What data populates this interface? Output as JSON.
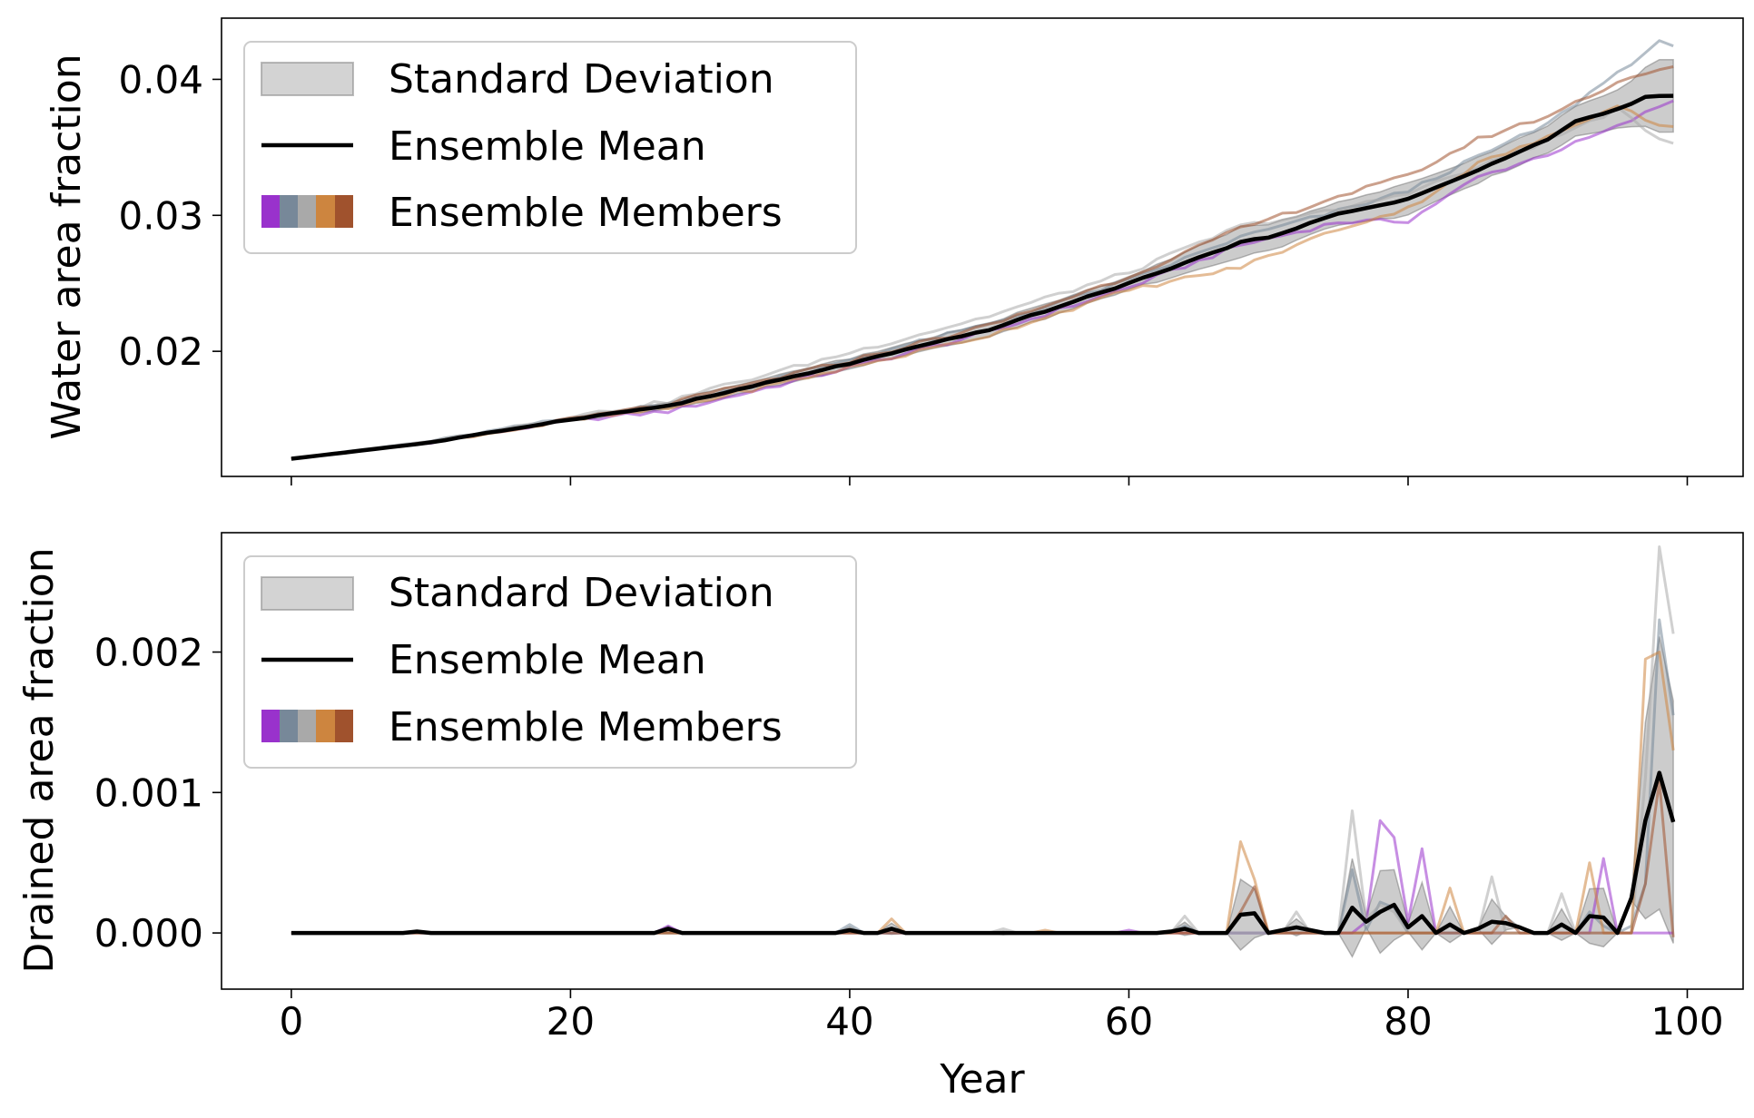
{
  "chart_data": [
    {
      "type": "line",
      "panel": "top",
      "ylabel": "Water area fraction",
      "xlabel": "",
      "xlim": [
        -5,
        104
      ],
      "ylim": [
        0.0108,
        0.0445
      ],
      "xticks": [
        0,
        20,
        40,
        60,
        80,
        100
      ],
      "yticks": [
        0.02,
        0.03,
        0.04
      ],
      "ytick_labels": [
        "0.02",
        "0.03",
        "0.04"
      ],
      "show_xtick_labels": false,
      "grid": false,
      "legend_position": "top-left",
      "legend": {
        "std_label": "Standard Deviation",
        "mean_label": "Ensemble Mean",
        "members_label": "Ensemble Members"
      },
      "mean_keypoints": [
        [
          0,
          0.0121
        ],
        [
          10,
          0.0133
        ],
        [
          20,
          0.015
        ],
        [
          27,
          0.016
        ],
        [
          30,
          0.0167
        ],
        [
          40,
          0.0191
        ],
        [
          50,
          0.0216
        ],
        [
          60,
          0.025
        ],
        [
          68,
          0.028
        ],
        [
          70,
          0.0284
        ],
        [
          75,
          0.0301
        ],
        [
          80,
          0.0312
        ],
        [
          85,
          0.0333
        ],
        [
          90,
          0.0356
        ],
        [
          92,
          0.0369
        ],
        [
          95,
          0.0378
        ],
        [
          97,
          0.0387
        ],
        [
          99,
          0.0388
        ]
      ],
      "members": [
        {
          "color": "#9932CC",
          "keypoints": [
            [
              0,
              0.0121
            ],
            [
              10,
              0.0133
            ],
            [
              20,
              0.0149
            ],
            [
              27,
              0.0156
            ],
            [
              30,
              0.0163
            ],
            [
              40,
              0.0188
            ],
            [
              50,
              0.0214
            ],
            [
              60,
              0.0247
            ],
            [
              68,
              0.0278
            ],
            [
              75,
              0.0295
            ],
            [
              80,
              0.0296
            ],
            [
              85,
              0.0328
            ],
            [
              90,
              0.0345
            ],
            [
              95,
              0.0365
            ],
            [
              99,
              0.0385
            ]
          ]
        },
        {
          "color": "#778899",
          "keypoints": [
            [
              0,
              0.0121
            ],
            [
              10,
              0.0134
            ],
            [
              20,
              0.0151
            ],
            [
              27,
              0.0161
            ],
            [
              30,
              0.0168
            ],
            [
              40,
              0.0194
            ],
            [
              50,
              0.022
            ],
            [
              60,
              0.0252
            ],
            [
              68,
              0.0284
            ],
            [
              75,
              0.0303
            ],
            [
              80,
              0.0318
            ],
            [
              85,
              0.0343
            ],
            [
              90,
              0.0367
            ],
            [
              95,
              0.0405
            ],
            [
              98,
              0.0427
            ],
            [
              99,
              0.0423
            ]
          ]
        },
        {
          "color": "#A9A9A9",
          "keypoints": [
            [
              0,
              0.0121
            ],
            [
              10,
              0.0134
            ],
            [
              20,
              0.0152
            ],
            [
              27,
              0.0163
            ],
            [
              30,
              0.0172
            ],
            [
              40,
              0.0199
            ],
            [
              50,
              0.0226
            ],
            [
              60,
              0.0258
            ],
            [
              68,
              0.0292
            ],
            [
              75,
              0.0304
            ],
            [
              80,
              0.0317
            ],
            [
              85,
              0.0335
            ],
            [
              90,
              0.0355
            ],
            [
              95,
              0.0378
            ],
            [
              97,
              0.0362
            ],
            [
              99,
              0.0353
            ]
          ]
        },
        {
          "color": "#CD853F",
          "keypoints": [
            [
              0,
              0.0121
            ],
            [
              10,
              0.0133
            ],
            [
              20,
              0.0149
            ],
            [
              27,
              0.0158
            ],
            [
              30,
              0.0165
            ],
            [
              40,
              0.0188
            ],
            [
              50,
              0.0212
            ],
            [
              60,
              0.0245
            ],
            [
              68,
              0.0262
            ],
            [
              75,
              0.029
            ],
            [
              80,
              0.0305
            ],
            [
              85,
              0.0338
            ],
            [
              90,
              0.0357
            ],
            [
              95,
              0.0382
            ],
            [
              97,
              0.037
            ],
            [
              99,
              0.0365
            ]
          ]
        },
        {
          "color": "#A0522D",
          "keypoints": [
            [
              0,
              0.0121
            ],
            [
              10,
              0.0133
            ],
            [
              20,
              0.015
            ],
            [
              27,
              0.0161
            ],
            [
              30,
              0.0169
            ],
            [
              40,
              0.0193
            ],
            [
              50,
              0.0219
            ],
            [
              60,
              0.0255
            ],
            [
              68,
              0.029
            ],
            [
              75,
              0.0314
            ],
            [
              80,
              0.0329
            ],
            [
              85,
              0.0356
            ],
            [
              90,
              0.0373
            ],
            [
              95,
              0.0398
            ],
            [
              97,
              0.0405
            ],
            [
              99,
              0.0408
            ]
          ]
        }
      ]
    },
    {
      "type": "line",
      "panel": "bottom",
      "ylabel": "Drained area fraction",
      "xlabel": "Year",
      "xlim": [
        -5,
        104
      ],
      "ylim": [
        -0.0004,
        0.00285
      ],
      "xticks": [
        0,
        20,
        40,
        60,
        80,
        100
      ],
      "xtick_labels": [
        "0",
        "20",
        "40",
        "60",
        "80",
        "100"
      ],
      "yticks": [
        0.0,
        0.001,
        0.002
      ],
      "ytick_labels": [
        "0.000",
        "0.001",
        "0.002"
      ],
      "show_xtick_labels": true,
      "grid": false,
      "legend_position": "top-left",
      "legend": {
        "std_label": "Standard Deviation",
        "mean_label": "Ensemble Mean",
        "members_label": "Ensemble Members"
      },
      "mean_points": [
        [
          0,
          0
        ],
        [
          8,
          0
        ],
        [
          9,
          1e-05
        ],
        [
          10,
          0
        ],
        [
          26,
          0
        ],
        [
          27,
          3e-05
        ],
        [
          28,
          0
        ],
        [
          39,
          0
        ],
        [
          40,
          2e-05
        ],
        [
          41,
          0
        ],
        [
          42,
          0
        ],
        [
          43,
          3e-05
        ],
        [
          44,
          0
        ],
        [
          62,
          0
        ],
        [
          63,
          1e-05
        ],
        [
          64,
          3e-05
        ],
        [
          65,
          0
        ],
        [
          67,
          0
        ],
        [
          68,
          0.00013
        ],
        [
          69,
          0.00014
        ],
        [
          70,
          0
        ],
        [
          71,
          2e-05
        ],
        [
          72,
          4e-05
        ],
        [
          73,
          2e-05
        ],
        [
          74,
          0
        ],
        [
          75,
          0
        ],
        [
          76,
          0.00018
        ],
        [
          77,
          8e-05
        ],
        [
          78,
          0.00015
        ],
        [
          79,
          0.0002
        ],
        [
          80,
          4e-05
        ],
        [
          81,
          0.00012
        ],
        [
          82,
          0
        ],
        [
          83,
          6e-05
        ],
        [
          84,
          0
        ],
        [
          85,
          3e-05
        ],
        [
          86,
          8e-05
        ],
        [
          87,
          7e-05
        ],
        [
          88,
          4e-05
        ],
        [
          89,
          0
        ],
        [
          90,
          0
        ],
        [
          91,
          6e-05
        ],
        [
          92,
          0
        ],
        [
          93,
          0.00012
        ],
        [
          94,
          0.00011
        ],
        [
          95,
          0
        ],
        [
          96,
          0.00025
        ],
        [
          97,
          0.0008
        ],
        [
          98,
          0.00114
        ],
        [
          99,
          0.00079
        ]
      ],
      "members": [
        {
          "color": "#9932CC",
          "points": [
            [
              0,
              0
            ],
            [
              26,
              0
            ],
            [
              27,
              5e-05
            ],
            [
              28,
              0
            ],
            [
              59,
              0
            ],
            [
              60,
              2e-05
            ],
            [
              61,
              0
            ],
            [
              76,
              0
            ],
            [
              77,
              8e-05
            ],
            [
              78,
              0.0008
            ],
            [
              79,
              0.00068
            ],
            [
              80,
              8e-05
            ],
            [
              81,
              0.0006
            ],
            [
              82,
              0
            ],
            [
              93,
              0
            ],
            [
              94,
              0.00053
            ],
            [
              95,
              0
            ],
            [
              99,
              0
            ]
          ]
        },
        {
          "color": "#778899",
          "points": [
            [
              0,
              0
            ],
            [
              39,
              0
            ],
            [
              40,
              6e-05
            ],
            [
              41,
              0
            ],
            [
              63,
              0
            ],
            [
              64,
              5e-05
            ],
            [
              65,
              0
            ],
            [
              75,
              0
            ],
            [
              76,
              0.00045
            ],
            [
              77,
              2e-05
            ],
            [
              78,
              0.00022
            ],
            [
              79,
              0.00018
            ],
            [
              80,
              0
            ],
            [
              92,
              0
            ],
            [
              93,
              0.00015
            ],
            [
              94,
              5e-05
            ],
            [
              95,
              0
            ],
            [
              96,
              5e-05
            ],
            [
              97,
              0.00035
            ],
            [
              98,
              0.00223
            ],
            [
              99,
              0.00155
            ]
          ]
        },
        {
          "color": "#A9A9A9",
          "points": [
            [
              0,
              0
            ],
            [
              50,
              0
            ],
            [
              51,
              3e-05
            ],
            [
              52,
              0
            ],
            [
              63,
              0
            ],
            [
              64,
              0.00012
            ],
            [
              65,
              0
            ],
            [
              71,
              0
            ],
            [
              72,
              0.00015
            ],
            [
              73,
              0
            ],
            [
              75,
              0
            ],
            [
              76,
              0.00087
            ],
            [
              77,
              0.0001
            ],
            [
              78,
              0.0002
            ],
            [
              79,
              0.00015
            ],
            [
              80,
              0
            ],
            [
              85,
              0
            ],
            [
              86,
              0.0004
            ],
            [
              87,
              0
            ],
            [
              90,
              0
            ],
            [
              91,
              0.00028
            ],
            [
              92,
              0
            ],
            [
              96,
              0
            ],
            [
              97,
              0.0011
            ],
            [
              98,
              0.00275
            ],
            [
              99,
              0.00213
            ]
          ]
        },
        {
          "color": "#CD853F",
          "points": [
            [
              0,
              0
            ],
            [
              42,
              0
            ],
            [
              43,
              0.0001
            ],
            [
              44,
              0
            ],
            [
              53,
              0
            ],
            [
              54,
              2e-05
            ],
            [
              55,
              0
            ],
            [
              67,
              0
            ],
            [
              68,
              0.00065
            ],
            [
              69,
              0.00038
            ],
            [
              70,
              0
            ],
            [
              82,
              0
            ],
            [
              83,
              0.00032
            ],
            [
              84,
              0
            ],
            [
              92,
              0
            ],
            [
              93,
              0.0005
            ],
            [
              94,
              0
            ],
            [
              96,
              0
            ],
            [
              97,
              0.00195
            ],
            [
              98,
              0.002
            ],
            [
              99,
              0.0013
            ]
          ]
        },
        {
          "color": "#A0522D",
          "points": [
            [
              0,
              0
            ],
            [
              67,
              0
            ],
            [
              68,
              0.00015
            ],
            [
              69,
              0.00033
            ],
            [
              70,
              0
            ],
            [
              86,
              0
            ],
            [
              87,
              0.00012
            ],
            [
              88,
              0
            ],
            [
              96,
              0
            ],
            [
              97,
              0.00035
            ],
            [
              98,
              0.00108
            ],
            [
              99,
              -3e-05
            ]
          ]
        }
      ]
    }
  ]
}
